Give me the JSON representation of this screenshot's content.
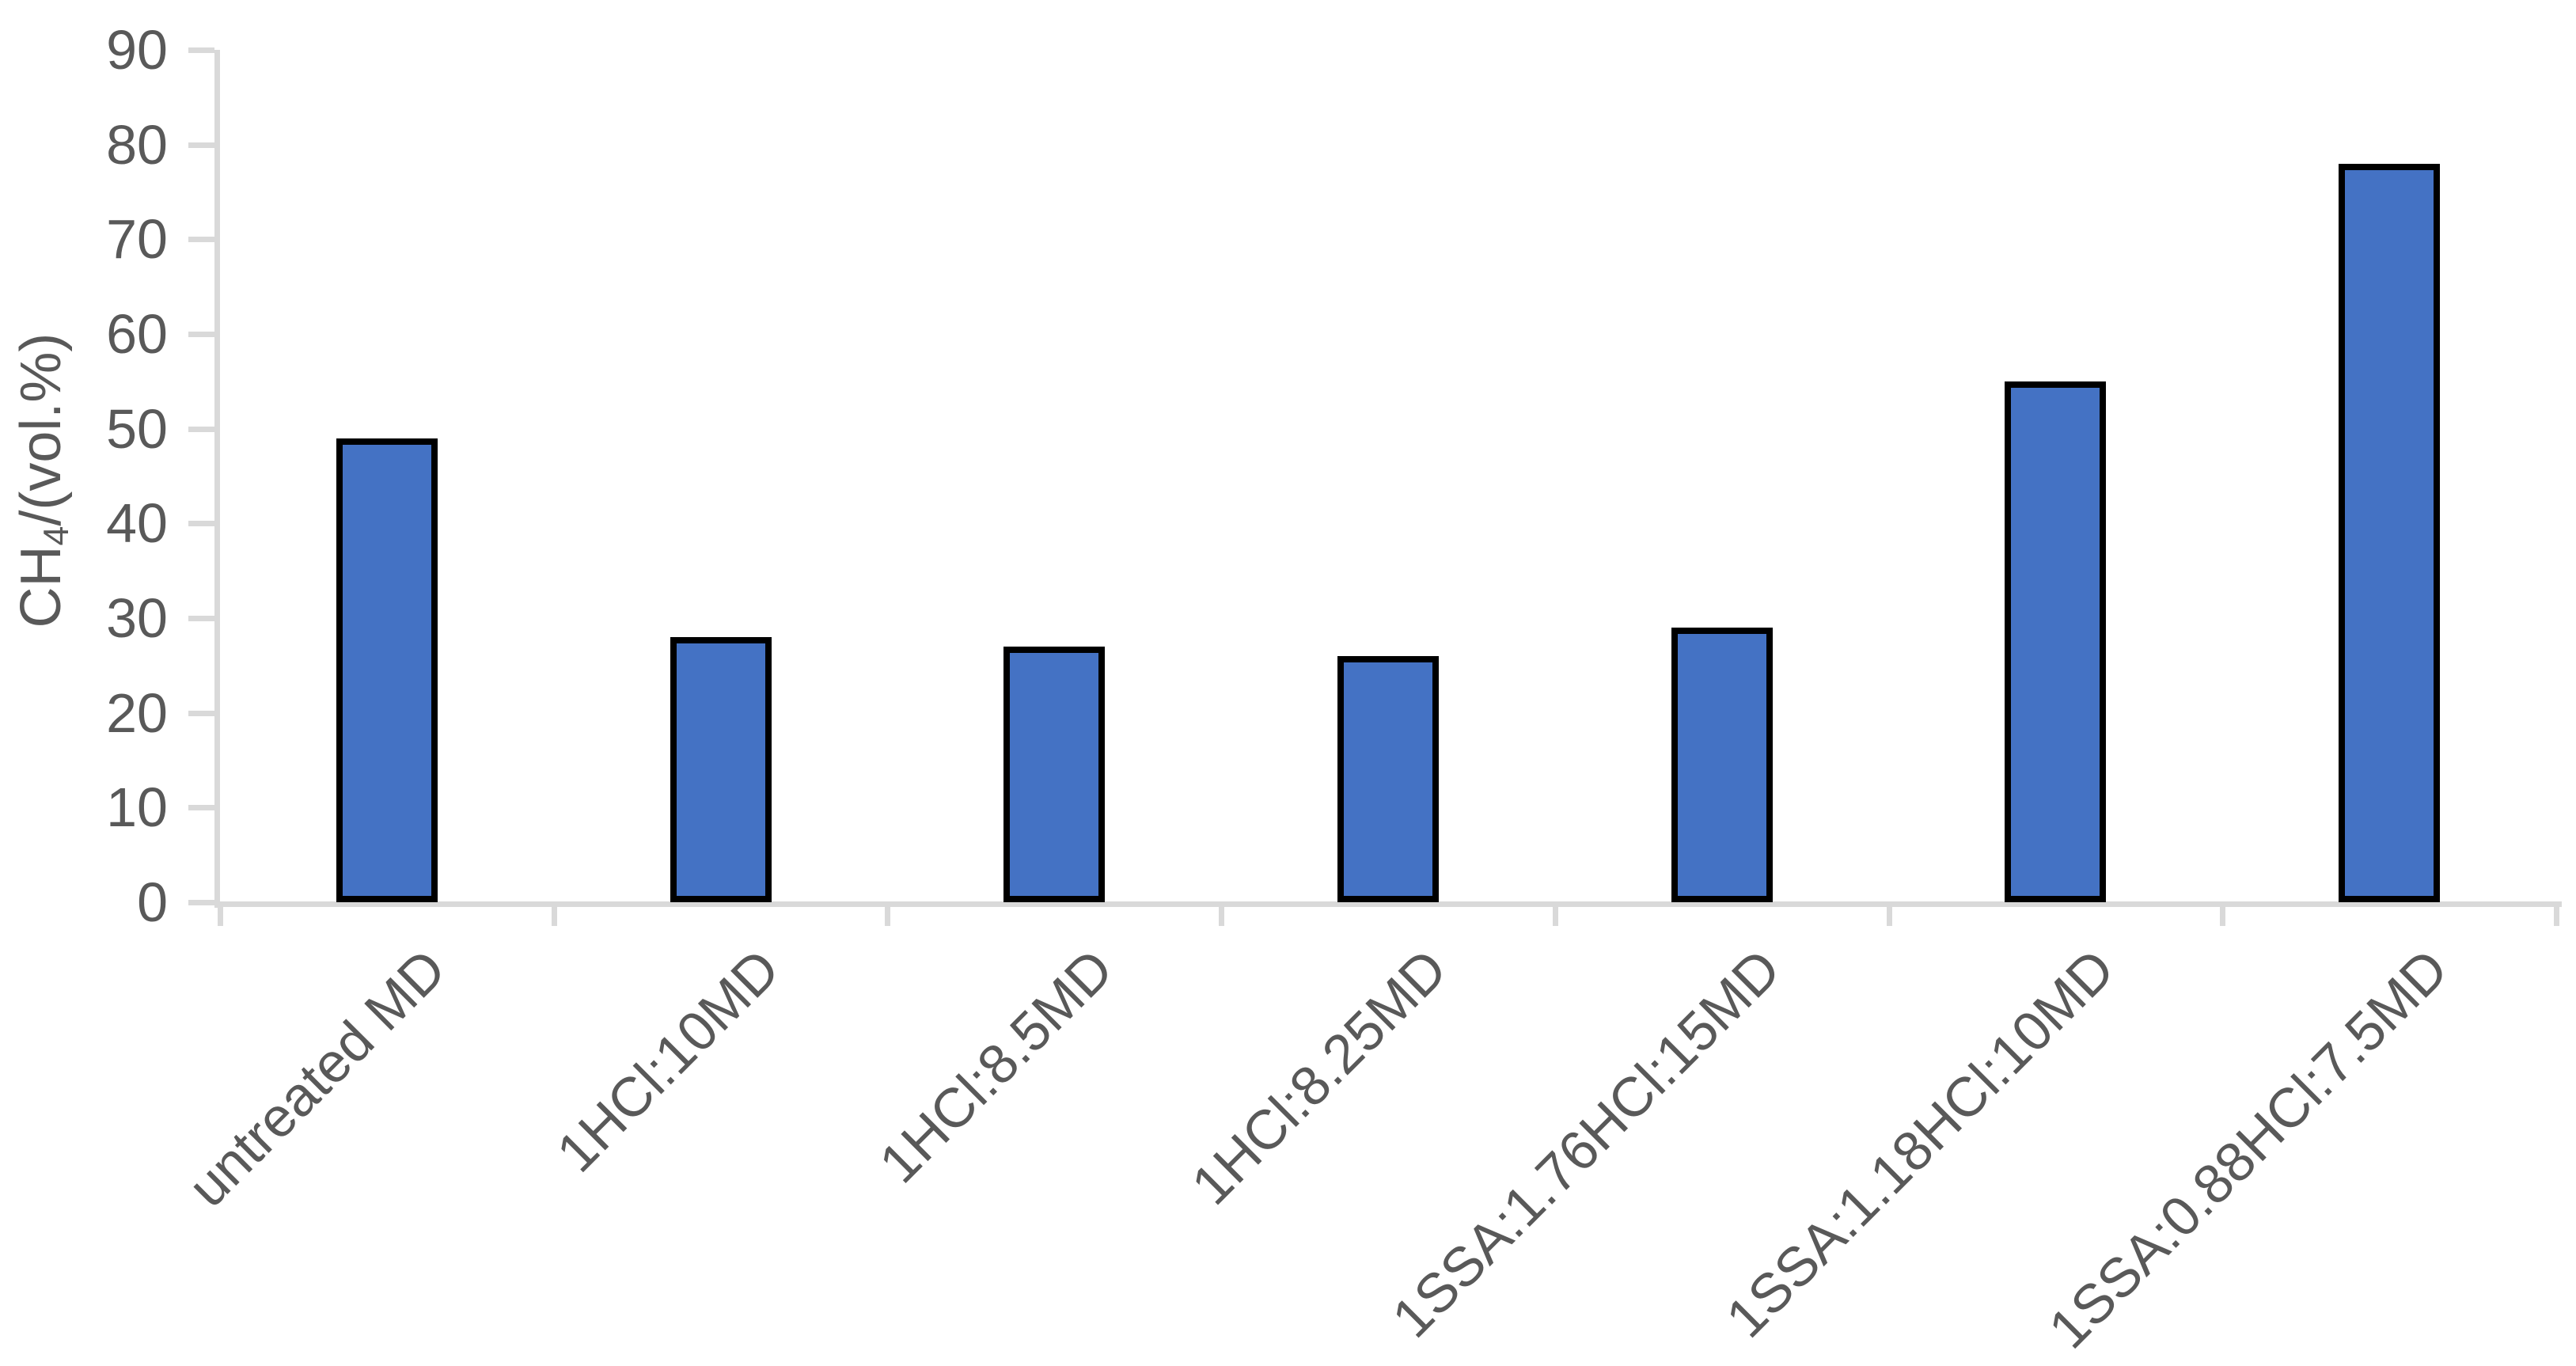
{
  "chart_data": {
    "type": "bar",
    "title": "",
    "categories": [
      "untreated MD",
      "1HCl:10MD",
      "1HCl:8.5MD",
      "1HCl:8.25MD",
      "1SSA:1.76HCl:15MD",
      "1SSA:1.18HCl:10MD",
      "1SSA:0.88HCl:7.5MD"
    ],
    "values": [
      49,
      28,
      27,
      26,
      29,
      55,
      78
    ],
    "ylabel": "CH4/(vol.%)",
    "ylabel_parts": {
      "prefix": "CH",
      "sub": "4",
      "suffix": "/(vol.%)"
    },
    "xlabel": "",
    "ylim": [
      0,
      90
    ],
    "yticks": [
      0,
      10,
      20,
      30,
      40,
      50,
      60,
      70,
      80,
      90
    ],
    "grid": false,
    "legend": false,
    "bar_color": "#4472C4",
    "bar_border_color": "#000000",
    "axis_color": "#D9D9D9",
    "text_color": "#595959"
  }
}
